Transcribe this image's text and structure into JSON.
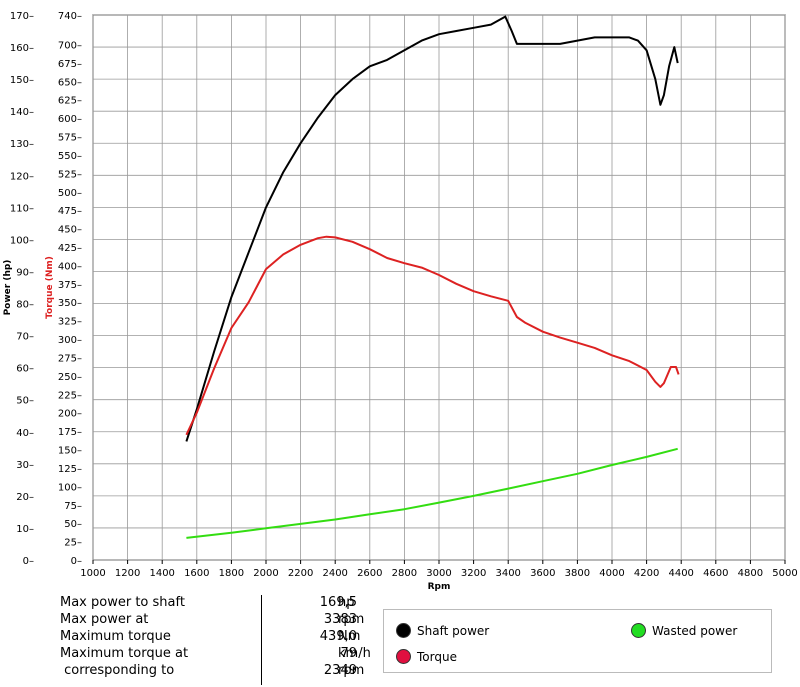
{
  "chart_data": {
    "type": "line",
    "xlabel": "Rpm",
    "ylabel_power": "Power (hp)",
    "ylabel_torque": "Torque (Nm)",
    "xlim": [
      1000,
      5000
    ],
    "ylim_power": [
      0,
      170
    ],
    "ylim_torque": [
      0,
      740
    ],
    "x_ticks": [
      1000,
      1200,
      1400,
      1600,
      1800,
      2000,
      2200,
      2400,
      2600,
      2800,
      3000,
      3200,
      3400,
      3600,
      3800,
      4000,
      4200,
      4400,
      4600,
      4800,
      5000
    ],
    "power_ticks": [
      0,
      10,
      20,
      30,
      40,
      50,
      60,
      70,
      80,
      90,
      100,
      110,
      120,
      130,
      140,
      150,
      160,
      170
    ],
    "torque_ticks": [
      0,
      25,
      50,
      75,
      100,
      125,
      150,
      175,
      200,
      225,
      250,
      275,
      300,
      325,
      350,
      375,
      400,
      425,
      450,
      475,
      500,
      525,
      550,
      575,
      600,
      625,
      650,
      675,
      700,
      740
    ],
    "grid": true,
    "series": [
      {
        "name": "Shaft power",
        "axis": "power",
        "color": "#000000",
        "x": [
          1540,
          1600,
          1700,
          1800,
          1900,
          2000,
          2100,
          2200,
          2300,
          2400,
          2500,
          2600,
          2700,
          2800,
          2900,
          3000,
          3100,
          3200,
          3300,
          3383,
          3420,
          3450,
          3500,
          3600,
          3700,
          3800,
          3900,
          4000,
          4100,
          4150,
          4200,
          4250,
          4280,
          4300,
          4330,
          4360,
          4380
        ],
        "values": [
          37,
          47,
          65,
          82,
          96,
          110,
          121,
          130,
          138,
          145,
          150,
          154,
          156,
          159,
          162,
          164,
          165,
          166,
          167,
          169.5,
          165,
          161,
          161,
          161,
          161,
          162,
          163,
          163,
          163,
          162,
          159,
          150,
          142,
          145,
          154,
          160,
          155
        ]
      },
      {
        "name": "Torque",
        "axis": "torque",
        "color": "#dd2222",
        "x": [
          1540,
          1600,
          1700,
          1800,
          1900,
          2000,
          2100,
          2200,
          2300,
          2349,
          2400,
          2500,
          2600,
          2700,
          2800,
          2900,
          3000,
          3100,
          3200,
          3300,
          3400,
          3450,
          3500,
          3600,
          3700,
          3800,
          3900,
          4000,
          4100,
          4200,
          4250,
          4280,
          4300,
          4340,
          4370,
          4385
        ],
        "values": [
          170,
          200,
          260,
          315,
          350,
          395,
          415,
          428,
          437,
          439,
          438,
          432,
          422,
          410,
          403,
          397,
          387,
          375,
          365,
          358,
          352,
          330,
          322,
          310,
          302,
          295,
          288,
          278,
          270,
          258,
          242,
          235,
          240,
          262,
          262,
          252
        ]
      },
      {
        "name": "Wasted power",
        "axis": "torque",
        "color": "#33dd11",
        "x": [
          1540,
          1800,
          2000,
          2200,
          2400,
          2600,
          2800,
          3000,
          3200,
          3400,
          3600,
          3800,
          4000,
          4200,
          4380
        ],
        "values": [
          30,
          37,
          43,
          49,
          55,
          62,
          69,
          78,
          87,
          97,
          107,
          117,
          129,
          140,
          151
        ]
      }
    ]
  },
  "summary": {
    "rows": [
      {
        "label": "Max power to shaft",
        "value": "169,5",
        "unit": "hp"
      },
      {
        "label": "Max power at",
        "value": "3383",
        "unit": "rpm"
      },
      {
        "label": "Maximum torque",
        "value": "439,0",
        "unit": "Nm"
      },
      {
        "label": "Maximum torque at",
        "value": "79",
        "unit": "km/h"
      },
      {
        "label": " corresponding to",
        "value": "2349",
        "unit": "rpm"
      }
    ]
  },
  "legend": {
    "shaft": {
      "label": "Shaft power",
      "color": "#000000"
    },
    "torque": {
      "label": "Torque",
      "color": "#e01040"
    },
    "wasted": {
      "label": "Wasted power",
      "color": "#22dd22"
    }
  }
}
